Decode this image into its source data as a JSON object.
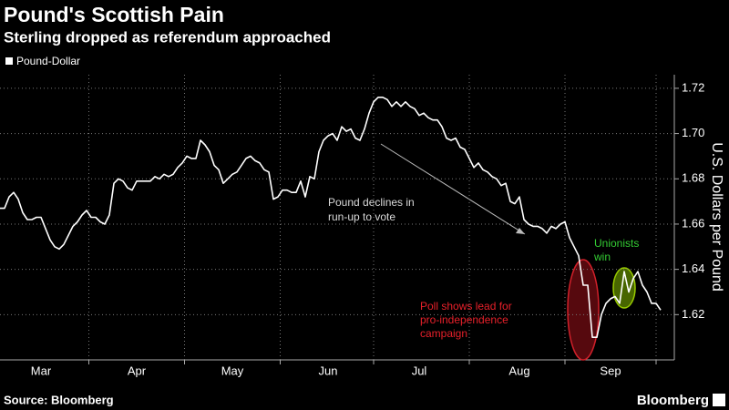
{
  "chart_data": {
    "type": "line",
    "title": "Pound's Scottish Pain",
    "subtitle": "Sterling dropped as referendum approached",
    "y_label": "U.S. Dollars per Pound",
    "source": "Source: Bloomberg",
    "brand": "Bloomberg",
    "annotations": [
      {
        "lines": [
          "Pound declines in",
          "run-up to vote"
        ],
        "color": "#d9d9d9"
      },
      {
        "lines": [
          "Unionists",
          "win"
        ],
        "color": "#33cc33"
      },
      {
        "lines": [
          "Poll shows lead for",
          "pro-independence",
          "campaign"
        ],
        "color": "#e8202a"
      }
    ],
    "categories": [
      null,
      null,
      null,
      null,
      null,
      null,
      null,
      null,
      null,
      "Mar",
      null,
      null,
      null,
      null,
      null,
      null,
      null,
      null,
      null,
      null,
      null,
      null,
      null,
      null,
      null,
      null,
      null,
      null,
      null,
      null,
      "Apr",
      null,
      null,
      null,
      null,
      null,
      null,
      null,
      null,
      null,
      null,
      null,
      null,
      null,
      null,
      null,
      null,
      null,
      null,
      null,
      null,
      "May",
      null,
      null,
      null,
      null,
      null,
      null,
      null,
      null,
      null,
      null,
      null,
      null,
      null,
      null,
      null,
      null,
      null,
      null,
      null,
      null,
      "Jun",
      null,
      null,
      null,
      null,
      null,
      null,
      null,
      null,
      null,
      null,
      null,
      null,
      null,
      null,
      null,
      null,
      null,
      null,
      null,
      "Jul",
      null,
      null,
      null,
      null,
      null,
      null,
      null,
      null,
      null,
      null,
      null,
      null,
      null,
      null,
      null,
      null,
      null,
      null,
      null,
      null,
      null,
      "Aug",
      null,
      null,
      null,
      null,
      null,
      null,
      null,
      null,
      null,
      null,
      null,
      null,
      null,
      null,
      null,
      null,
      null,
      null,
      null,
      "Sep",
      null,
      null,
      null,
      null,
      null,
      null,
      null,
      null,
      null,
      null,
      null
    ],
    "series": [
      {
        "name": "Pound-Dollar",
        "color": "#ffffff",
        "values": [
          1.667,
          1.667,
          1.672,
          1.674,
          1.671,
          1.665,
          1.662,
          1.662,
          1.663,
          1.663,
          1.658,
          1.653,
          1.65,
          1.649,
          1.651,
          1.655,
          1.659,
          1.661,
          1.664,
          1.666,
          1.663,
          1.663,
          1.661,
          1.66,
          1.664,
          1.678,
          1.68,
          1.679,
          1.676,
          1.675,
          1.679,
          1.679,
          1.679,
          1.679,
          1.681,
          1.68,
          1.682,
          1.681,
          1.682,
          1.685,
          1.687,
          1.69,
          1.689,
          1.689,
          1.697,
          1.695,
          1.692,
          1.686,
          1.684,
          1.678,
          1.68,
          1.682,
          1.683,
          1.686,
          1.689,
          1.69,
          1.688,
          1.687,
          1.684,
          1.683,
          1.671,
          1.672,
          1.675,
          1.675,
          1.674,
          1.674,
          1.679,
          1.672,
          1.681,
          1.68,
          1.692,
          1.697,
          1.699,
          1.7,
          1.697,
          1.703,
          1.701,
          1.702,
          1.698,
          1.697,
          1.702,
          1.709,
          1.714,
          1.716,
          1.716,
          1.715,
          1.712,
          1.714,
          1.712,
          1.714,
          1.712,
          1.711,
          1.708,
          1.709,
          1.707,
          1.706,
          1.706,
          1.703,
          1.698,
          1.697,
          1.698,
          1.694,
          1.693,
          1.689,
          1.685,
          1.687,
          1.684,
          1.683,
          1.681,
          1.68,
          1.677,
          1.678,
          1.67,
          1.669,
          1.672,
          1.662,
          1.66,
          1.659,
          1.659,
          1.658,
          1.656,
          1.659,
          1.658,
          1.66,
          1.661,
          1.654,
          1.65,
          1.646,
          1.633,
          1.633,
          1.61,
          1.61,
          1.62,
          1.625,
          1.627,
          1.628,
          1.625,
          1.639,
          1.63,
          1.636,
          1.639,
          1.633,
          1.63,
          1.625,
          1.625,
          1.622
        ]
      }
    ],
    "ylim": [
      1.6,
      1.726
    ],
    "yticks": [
      1.62,
      1.64,
      1.66,
      1.68,
      {
        "value": 1.7,
        "label": "1.70"
      },
      1.72
    ],
    "grid": true
  }
}
